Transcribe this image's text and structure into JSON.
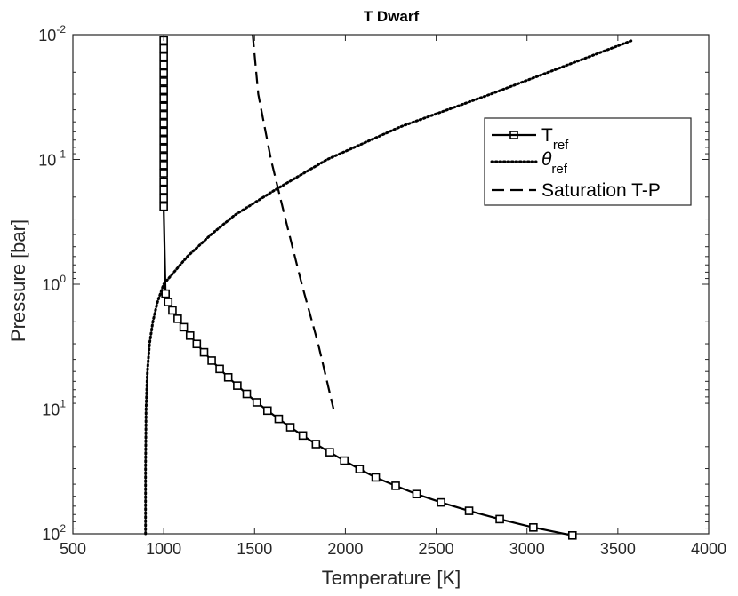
{
  "chart_data": {
    "type": "line",
    "title": "T Dwarf",
    "xlabel": "Temperature [K]",
    "ylabel": "Pressure [bar]",
    "xlim": [
      500,
      4000
    ],
    "ylim": [
      0.01,
      100
    ],
    "y_scale": "log",
    "y_reversed": true,
    "grid": false,
    "legend_position": "top-right",
    "x_ticks": [
      "500",
      "1000",
      "1500",
      "2000",
      "2500",
      "3000",
      "3500",
      "4000"
    ],
    "y_ticks": [
      {
        "base": "10",
        "exp": "-2"
      },
      {
        "base": "10",
        "exp": "-1"
      },
      {
        "base": "10",
        "exp": "0"
      },
      {
        "base": "10",
        "exp": "1"
      },
      {
        "base": "10",
        "exp": "2"
      }
    ],
    "series": [
      {
        "name": "T",
        "name_sub": "ref",
        "style": "solid-square",
        "x": [
          1000,
          1000,
          1000,
          1000,
          1000,
          1000,
          1000,
          1000,
          1000,
          1000,
          1000,
          1000,
          1000,
          1000,
          1000,
          1000,
          1000,
          1000,
          1000,
          1000,
          1000,
          1010,
          1025,
          1048,
          1077,
          1110,
          1145,
          1182,
          1222,
          1264,
          1308,
          1355,
          1405,
          1457,
          1512,
          1571,
          1633,
          1697,
          1766,
          1838,
          1914,
          1994,
          2078,
          2167,
          2277,
          2392,
          2527,
          2681,
          2850,
          3035,
          3250
        ],
        "y": [
          0.0111,
          0.0129,
          0.015,
          0.0175,
          0.0204,
          0.0238,
          0.0278,
          0.0324,
          0.0378,
          0.0441,
          0.0514,
          0.06,
          0.07,
          0.0816,
          0.0952,
          0.111,
          0.129,
          0.151,
          0.176,
          0.205,
          0.239,
          1.19,
          1.39,
          1.62,
          1.89,
          2.21,
          2.58,
          3.01,
          3.51,
          4.09,
          4.77,
          5.57,
          6.49,
          7.57,
          8.84,
          10.3,
          12.0,
          14.0,
          16.3,
          19.1,
          22.2,
          25.9,
          30.3,
          35.3,
          41.2,
          48.0,
          56.0,
          65.4,
          76.2,
          88.9,
          103
        ]
      },
      {
        "name": "θ",
        "name_sub": "ref",
        "style": "dotted",
        "x": [
          900,
          900,
          903,
          910,
          922,
          940,
          965,
          1000,
          1130,
          1260,
          1390,
          1600,
          1900,
          2300,
          2800,
          3200,
          3580
        ],
        "y": [
          100,
          30,
          10,
          5,
          3,
          2,
          1.4,
          1.0,
          0.6,
          0.4,
          0.28,
          0.18,
          0.1,
          0.055,
          0.03,
          0.018,
          0.0111
        ]
      },
      {
        "name": "Saturation T-P",
        "style": "dashed",
        "x": [
          1490,
          1520,
          1590,
          1670,
          1760,
          1850,
          1935
        ],
        "y": [
          0.01,
          0.03,
          0.1,
          0.3,
          1,
          3,
          10
        ]
      }
    ]
  }
}
